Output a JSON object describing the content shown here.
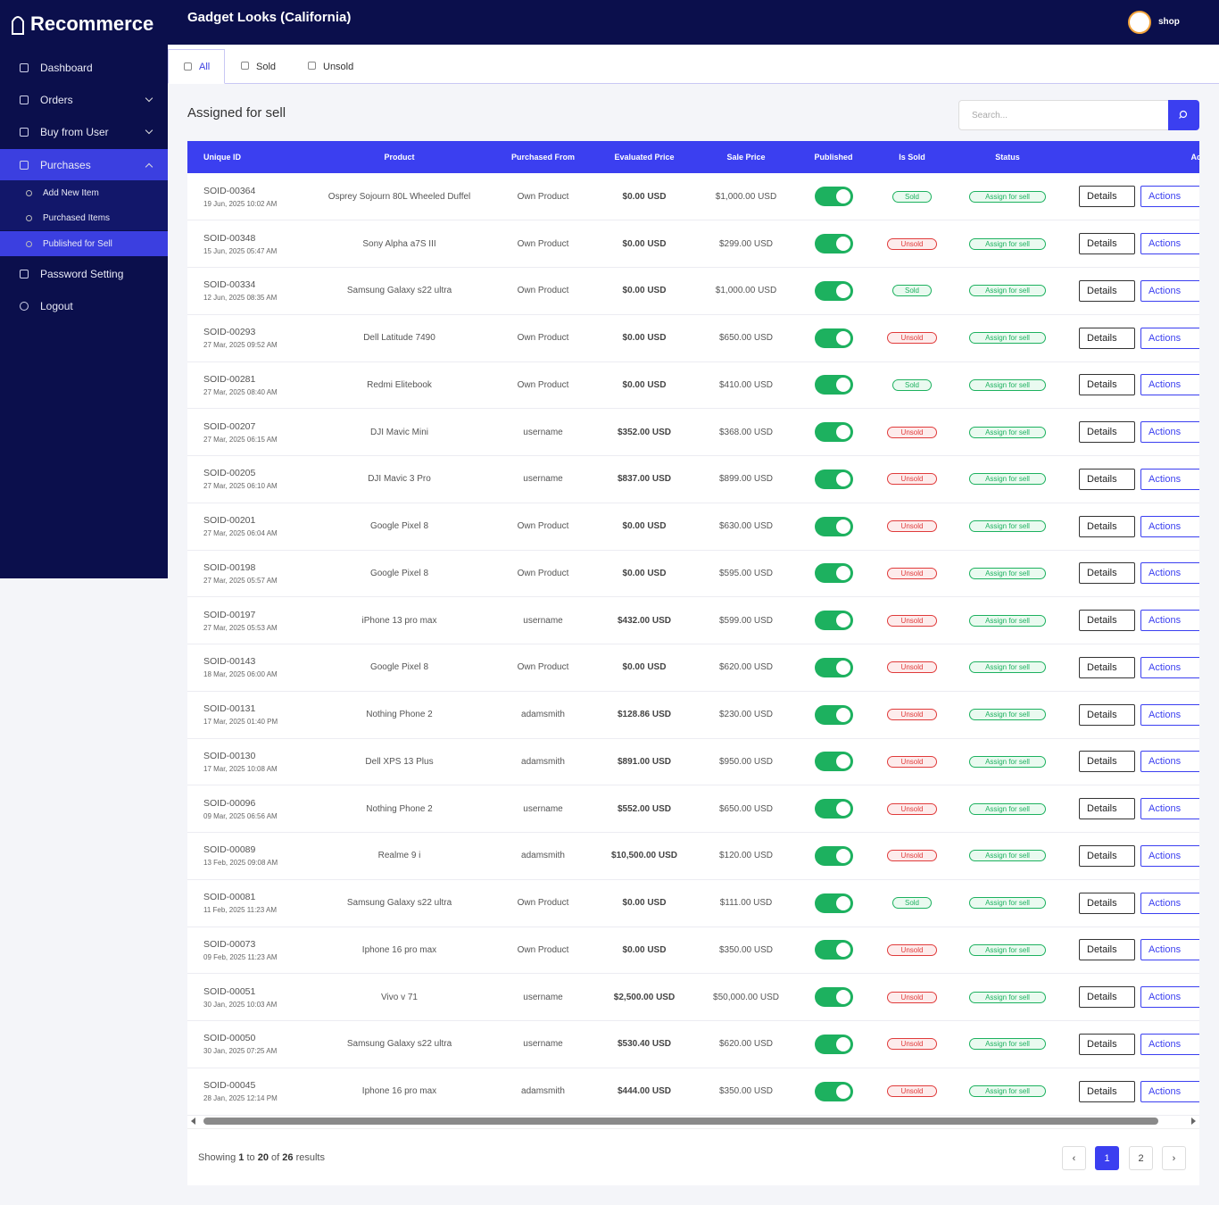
{
  "sidebar": {
    "logo": "Recommerce",
    "menu": [
      "Dashboard",
      "Orders",
      "Buy from User",
      "Purchases"
    ],
    "submenu": [
      "Add New Item",
      "Purchased Items",
      "Published for Sell"
    ],
    "menu_after": [
      "Password Setting",
      "Logout"
    ]
  },
  "header": {
    "title": "Gadget Looks (California)",
    "user": "shop"
  },
  "tabs": [
    "All",
    "Sold",
    "Unsold"
  ],
  "section": {
    "title": "Assigned for sell",
    "search_placeholder": "Search..."
  },
  "table": {
    "columns": [
      "Unique ID",
      "Product",
      "Purchased From",
      "Evaluated Price",
      "Sale Price",
      "Published",
      "Is Sold",
      "Status",
      "Actions"
    ],
    "buttons": {
      "details": "Details",
      "actions": "Actions"
    },
    "rows": [
      {
        "id": "SOID-00364",
        "date": "19 Jun, 2025 10:02 AM",
        "product": "Osprey Sojourn 80L Wheeled Duffel",
        "from": "Own Product",
        "eval_price": "$0.00 USD",
        "sale_price": "$1,000.00 USD",
        "published": true,
        "sold": "Sold",
        "status": "Assign for sell"
      },
      {
        "id": "SOID-00348",
        "date": "15 Jun, 2025 05:47 AM",
        "product": "Sony Alpha a7S III",
        "from": "Own Product",
        "eval_price": "$0.00 USD",
        "sale_price": "$299.00 USD",
        "published": true,
        "sold": "Unsold",
        "status": "Assign for sell"
      },
      {
        "id": "SOID-00334",
        "date": "12 Jun, 2025 08:35 AM",
        "product": "Samsung Galaxy s22 ultra",
        "from": "Own Product",
        "eval_price": "$0.00 USD",
        "sale_price": "$1,000.00 USD",
        "published": true,
        "sold": "Sold",
        "status": "Assign for sell"
      },
      {
        "id": "SOID-00293",
        "date": "27 Mar, 2025 09:52 AM",
        "product": "Dell Latitude 7490",
        "from": "Own Product",
        "eval_price": "$0.00 USD",
        "sale_price": "$650.00 USD",
        "published": true,
        "sold": "Unsold",
        "status": "Assign for sell"
      },
      {
        "id": "SOID-00281",
        "date": "27 Mar, 2025 08:40 AM",
        "product": "Redmi Elitebook",
        "from": "Own Product",
        "eval_price": "$0.00 USD",
        "sale_price": "$410.00 USD",
        "published": true,
        "sold": "Sold",
        "status": "Assign for sell"
      },
      {
        "id": "SOID-00207",
        "date": "27 Mar, 2025 06:15 AM",
        "product": "DJI Mavic Mini",
        "from": "username",
        "eval_price": "$352.00 USD",
        "sale_price": "$368.00 USD",
        "published": true,
        "sold": "Unsold",
        "status": "Assign for sell"
      },
      {
        "id": "SOID-00205",
        "date": "27 Mar, 2025 06:10 AM",
        "product": "DJI Mavic 3 Pro",
        "from": "username",
        "eval_price": "$837.00 USD",
        "sale_price": "$899.00 USD",
        "published": true,
        "sold": "Unsold",
        "status": "Assign for sell"
      },
      {
        "id": "SOID-00201",
        "date": "27 Mar, 2025 06:04 AM",
        "product": "Google Pixel 8",
        "from": "Own Product",
        "eval_price": "$0.00 USD",
        "sale_price": "$630.00 USD",
        "published": true,
        "sold": "Unsold",
        "status": "Assign for sell"
      },
      {
        "id": "SOID-00198",
        "date": "27 Mar, 2025 05:57 AM",
        "product": "Google Pixel 8",
        "from": "Own Product",
        "eval_price": "$0.00 USD",
        "sale_price": "$595.00 USD",
        "published": true,
        "sold": "Unsold",
        "status": "Assign for sell"
      },
      {
        "id": "SOID-00197",
        "date": "27 Mar, 2025 05:53 AM",
        "product": "iPhone 13 pro max",
        "from": "username",
        "eval_price": "$432.00 USD",
        "sale_price": "$599.00 USD",
        "published": true,
        "sold": "Unsold",
        "status": "Assign for sell"
      },
      {
        "id": "SOID-00143",
        "date": "18 Mar, 2025 06:00 AM",
        "product": "Google Pixel 8",
        "from": "Own Product",
        "eval_price": "$0.00 USD",
        "sale_price": "$620.00 USD",
        "published": true,
        "sold": "Unsold",
        "status": "Assign for sell"
      },
      {
        "id": "SOID-00131",
        "date": "17 Mar, 2025 01:40 PM",
        "product": "Nothing Phone 2",
        "from": "adamsmith",
        "eval_price": "$128.86 USD",
        "sale_price": "$230.00 USD",
        "published": true,
        "sold": "Unsold",
        "status": "Assign for sell"
      },
      {
        "id": "SOID-00130",
        "date": "17 Mar, 2025 10:08 AM",
        "product": "Dell XPS 13 Plus",
        "from": "adamsmith",
        "eval_price": "$891.00 USD",
        "sale_price": "$950.00 USD",
        "published": true,
        "sold": "Unsold",
        "status": "Assign for sell"
      },
      {
        "id": "SOID-00096",
        "date": "09 Mar, 2025 06:56 AM",
        "product": "Nothing Phone 2",
        "from": "username",
        "eval_price": "$552.00 USD",
        "sale_price": "$650.00 USD",
        "published": true,
        "sold": "Unsold",
        "status": "Assign for sell"
      },
      {
        "id": "SOID-00089",
        "date": "13 Feb, 2025 09:08 AM",
        "product": "Realme 9 i",
        "from": "adamsmith",
        "eval_price": "$10,500.00 USD",
        "sale_price": "$120.00 USD",
        "published": true,
        "sold": "Unsold",
        "status": "Assign for sell"
      },
      {
        "id": "SOID-00081",
        "date": "11 Feb, 2025 11:23 AM",
        "product": "Samsung Galaxy s22 ultra",
        "from": "Own Product",
        "eval_price": "$0.00 USD",
        "sale_price": "$111.00 USD",
        "published": true,
        "sold": "Sold",
        "status": "Assign for sell"
      },
      {
        "id": "SOID-00073",
        "date": "09 Feb, 2025 11:23 AM",
        "product": "Iphone 16 pro max",
        "from": "Own Product",
        "eval_price": "$0.00 USD",
        "sale_price": "$350.00 USD",
        "published": true,
        "sold": "Unsold",
        "status": "Assign for sell"
      },
      {
        "id": "SOID-00051",
        "date": "30 Jan, 2025 10:03 AM",
        "product": "Vivo v 71",
        "from": "username",
        "eval_price": "$2,500.00 USD",
        "sale_price": "$50,000.00 USD",
        "published": true,
        "sold": "Unsold",
        "status": "Assign for sell"
      },
      {
        "id": "SOID-00050",
        "date": "30 Jan, 2025 07:25 AM",
        "product": "Samsung Galaxy s22 ultra",
        "from": "username",
        "eval_price": "$530.40 USD",
        "sale_price": "$620.00 USD",
        "published": true,
        "sold": "Unsold",
        "status": "Assign for sell"
      },
      {
        "id": "SOID-00045",
        "date": "28 Jan, 2025 12:14 PM",
        "product": "Iphone 16 pro max",
        "from": "adamsmith",
        "eval_price": "$444.00 USD",
        "sale_price": "$350.00 USD",
        "published": true,
        "sold": "Unsold",
        "status": "Assign for sell"
      }
    ]
  },
  "pagination": {
    "showing": "Showing",
    "from": "1",
    "to_word": "to",
    "to": "20",
    "of_word": "of",
    "total": "26",
    "results": "results",
    "prev": "‹",
    "pages": [
      "1",
      "2"
    ],
    "next": "›",
    "current": 0
  }
}
